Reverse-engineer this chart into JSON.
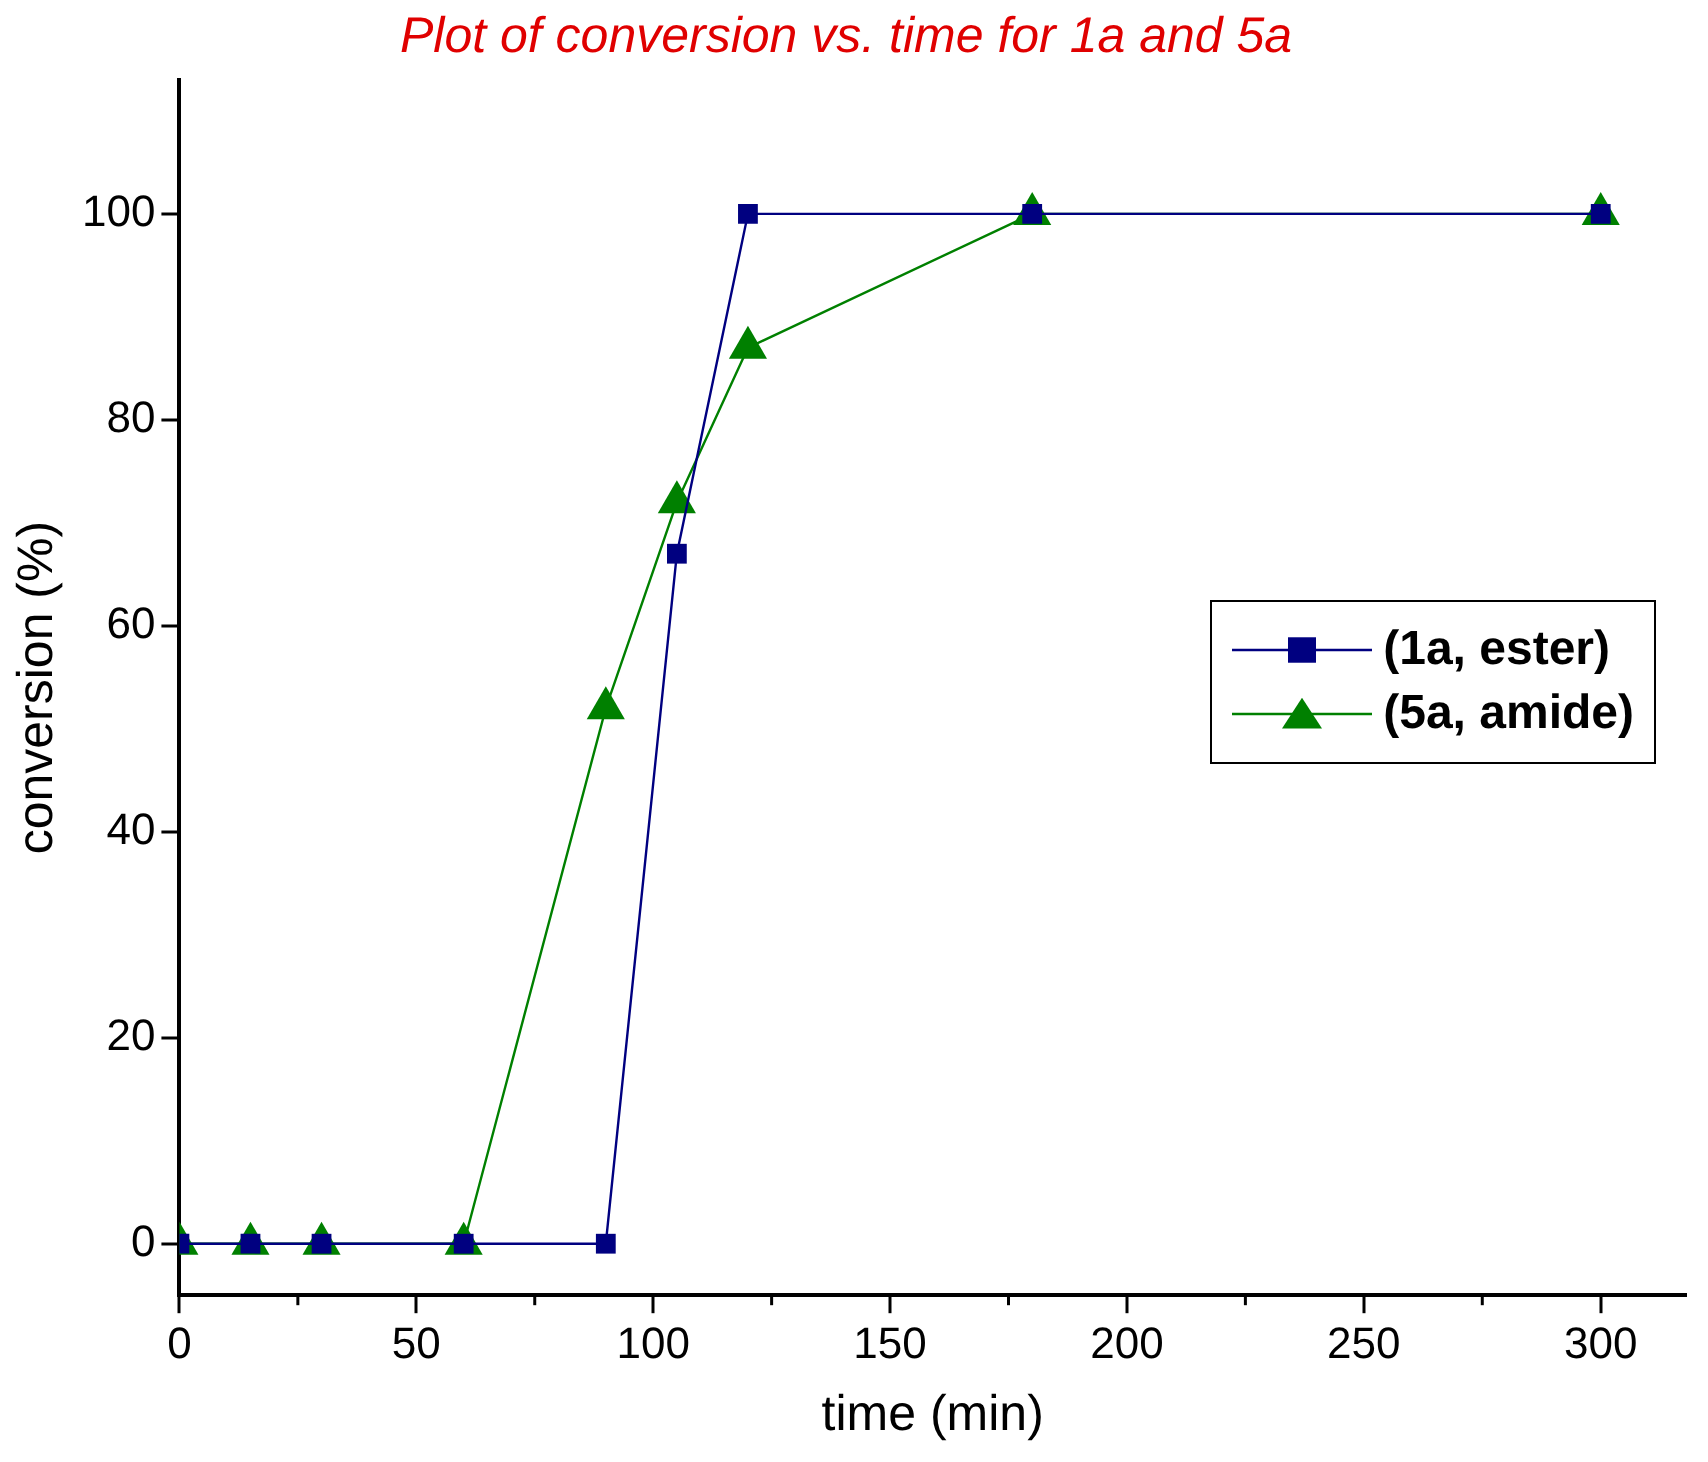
{
  "chart_data": {
    "type": "line",
    "title": "Plot of conversion vs. time for 1a and 5a",
    "xlabel": "time (min)",
    "ylabel": "conversion (%)",
    "x": [
      0,
      15,
      30,
      60,
      90,
      105,
      120,
      180,
      300
    ],
    "series": [
      {
        "name": "(1a, ester)",
        "color": "#000080",
        "marker": "square",
        "values": [
          0,
          0,
          0,
          0,
          0,
          67,
          100,
          100,
          100
        ]
      },
      {
        "name": "(5a, amide)",
        "color": "#008000",
        "marker": "triangle",
        "values": [
          0,
          0,
          0,
          0,
          52,
          72,
          87,
          100,
          100
        ]
      }
    ],
    "xlim": [
      0,
      318
    ],
    "xticks": [
      0,
      50,
      100,
      150,
      200,
      250,
      300
    ],
    "ylim": [
      -5,
      113
    ],
    "yticks": [
      0,
      20,
      40,
      60,
      80,
      100
    ],
    "grid": false,
    "legend": "right",
    "line_style": "solid"
  }
}
